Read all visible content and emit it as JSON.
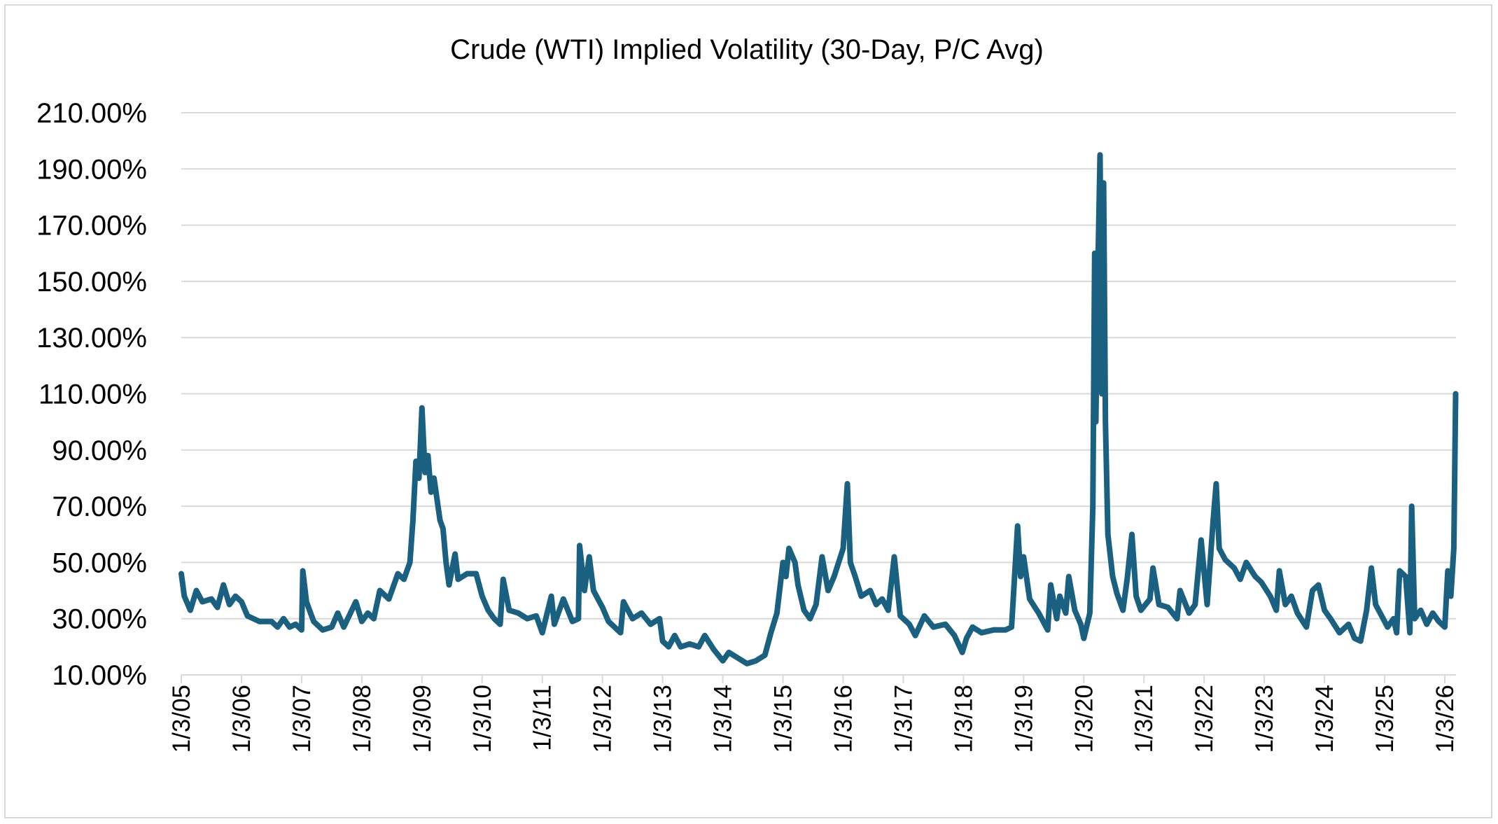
{
  "chart_data": {
    "type": "line",
    "title": "Crude (WTI) Implied Volatility (30-Day, P/C Avg)",
    "xlabel": "",
    "ylabel": "",
    "ylim": [
      10,
      210
    ],
    "xlim": [
      2005.0,
      2026.2
    ],
    "grid": true,
    "legend": "none",
    "series_color": "#1a6080",
    "y_ticks": [
      10,
      30,
      50,
      70,
      90,
      110,
      130,
      150,
      170,
      190,
      210
    ],
    "y_tick_labels": [
      "10.00%",
      "30.00%",
      "50.00%",
      "70.00%",
      "90.00%",
      "110.00%",
      "130.00%",
      "150.00%",
      "170.00%",
      "190.00%",
      "210.00%"
    ],
    "x_ticks": [
      2005,
      2006,
      2007,
      2008,
      2009,
      2010,
      2011,
      2012,
      2013,
      2014,
      2015,
      2016,
      2017,
      2018,
      2019,
      2020,
      2021,
      2022,
      2023,
      2024,
      2025,
      2026
    ],
    "x_tick_labels": [
      "1/3/05",
      "1/3/06",
      "1/3/07",
      "1/3/08",
      "1/3/09",
      "1/3/10",
      "1/3/11",
      "1/3/12",
      "1/3/13",
      "1/3/14",
      "1/3/15",
      "1/3/16",
      "1/3/17",
      "1/3/18",
      "1/3/19",
      "1/3/20",
      "1/3/21",
      "1/3/22",
      "1/3/23",
      "1/3/24",
      "1/3/25",
      "1/3/26"
    ],
    "series": [
      {
        "name": "Crude (WTI) Implied Volatility",
        "x": [
          2005.0,
          2005.05,
          2005.15,
          2005.25,
          2005.35,
          2005.5,
          2005.6,
          2005.7,
          2005.8,
          2005.9,
          2006.0,
          2006.1,
          2006.3,
          2006.5,
          2006.6,
          2006.7,
          2006.8,
          2006.9,
          2007.0,
          2007.02,
          2007.08,
          2007.2,
          2007.35,
          2007.5,
          2007.6,
          2007.7,
          2007.9,
          2008.0,
          2008.1,
          2008.2,
          2008.3,
          2008.45,
          2008.6,
          2008.7,
          2008.8,
          2008.85,
          2008.9,
          2008.95,
          2009.0,
          2009.05,
          2009.1,
          2009.15,
          2009.2,
          2009.3,
          2009.35,
          2009.4,
          2009.45,
          2009.55,
          2009.6,
          2009.75,
          2009.9,
          2010.0,
          2010.1,
          2010.2,
          2010.3,
          2010.35,
          2010.45,
          2010.6,
          2010.75,
          2010.9,
          2011.0,
          2011.15,
          2011.2,
          2011.35,
          2011.5,
          2011.6,
          2011.62,
          2011.7,
          2011.78,
          2011.85,
          2012.0,
          2012.1,
          2012.3,
          2012.35,
          2012.5,
          2012.65,
          2012.8,
          2012.95,
          2013.0,
          2013.1,
          2013.2,
          2013.3,
          2013.45,
          2013.6,
          2013.7,
          2013.85,
          2014.0,
          2014.1,
          2014.25,
          2014.4,
          2014.55,
          2014.7,
          2014.8,
          2014.9,
          2015.0,
          2015.05,
          2015.1,
          2015.2,
          2015.25,
          2015.35,
          2015.45,
          2015.55,
          2015.65,
          2015.75,
          2015.85,
          2016.0,
          2016.07,
          2016.12,
          2016.2,
          2016.3,
          2016.45,
          2016.55,
          2016.65,
          2016.75,
          2016.85,
          2016.95,
          2017.1,
          2017.2,
          2017.35,
          2017.5,
          2017.7,
          2017.85,
          2017.98,
          2018.05,
          2018.15,
          2018.3,
          2018.5,
          2018.7,
          2018.8,
          2018.9,
          2018.95,
          2019.0,
          2019.1,
          2019.25,
          2019.4,
          2019.45,
          2019.55,
          2019.6,
          2019.7,
          2019.75,
          2019.85,
          2019.95,
          2020.0,
          2020.1,
          2020.15,
          2020.18,
          2020.2,
          2020.23,
          2020.27,
          2020.3,
          2020.33,
          2020.36,
          2020.4,
          2020.48,
          2020.55,
          2020.65,
          2020.72,
          2020.8,
          2020.87,
          2020.95,
          2021.1,
          2021.15,
          2021.25,
          2021.4,
          2021.55,
          2021.6,
          2021.75,
          2021.85,
          2021.95,
          2022.05,
          2022.15,
          2022.2,
          2022.25,
          2022.35,
          2022.5,
          2022.6,
          2022.7,
          2022.85,
          2022.95,
          2023.1,
          2023.2,
          2023.25,
          2023.35,
          2023.45,
          2023.55,
          2023.7,
          2023.8,
          2023.9,
          2024.0,
          2024.1,
          2024.25,
          2024.4,
          2024.5,
          2024.6,
          2024.7,
          2024.78,
          2024.85,
          2024.95,
          2025.05,
          2025.15,
          2025.2,
          2025.25,
          2025.35,
          2025.42,
          2025.45,
          2025.5,
          2025.6,
          2025.7,
          2025.8,
          2025.9,
          2026.0,
          2026.05,
          2026.1,
          2026.15,
          2026.18
        ],
        "y": [
          46,
          38,
          33,
          40,
          36,
          37,
          34,
          42,
          35,
          38,
          36,
          31,
          29,
          29,
          27,
          30,
          27,
          28,
          26,
          47,
          36,
          29,
          26,
          27,
          32,
          27,
          36,
          29,
          32,
          30,
          40,
          37,
          46,
          44,
          50,
          65,
          86,
          80,
          105,
          82,
          88,
          75,
          80,
          65,
          62,
          50,
          42,
          53,
          44,
          46,
          46,
          38,
          33,
          30,
          28,
          44,
          33,
          32,
          30,
          31,
          25,
          38,
          28,
          37,
          29,
          30,
          56,
          40,
          52,
          40,
          34,
          29,
          25,
          36,
          30,
          32,
          28,
          30,
          22,
          20,
          24,
          20,
          21,
          20,
          24,
          19,
          15,
          18,
          16,
          14,
          15,
          17,
          25,
          32,
          50,
          45,
          55,
          50,
          42,
          33,
          30,
          35,
          52,
          40,
          45,
          55,
          78,
          50,
          45,
          38,
          40,
          35,
          37,
          33,
          52,
          31,
          28,
          24,
          31,
          27,
          28,
          24,
          18,
          23,
          27,
          25,
          26,
          26,
          27,
          63,
          45,
          52,
          37,
          32,
          26,
          42,
          30,
          38,
          32,
          45,
          33,
          28,
          23,
          32,
          70,
          160,
          100,
          150,
          195,
          110,
          185,
          100,
          60,
          45,
          39,
          33,
          44,
          60,
          38,
          33,
          37,
          48,
          35,
          34,
          30,
          40,
          32,
          35,
          58,
          35,
          65,
          78,
          55,
          51,
          48,
          44,
          50,
          45,
          43,
          38,
          33,
          47,
          35,
          38,
          32,
          27,
          40,
          42,
          33,
          30,
          25,
          28,
          23,
          22,
          33,
          48,
          35,
          31,
          27,
          30,
          25,
          47,
          45,
          25,
          70,
          30,
          33,
          28,
          32,
          29,
          27,
          47,
          38,
          55,
          110
        ]
      }
    ]
  }
}
